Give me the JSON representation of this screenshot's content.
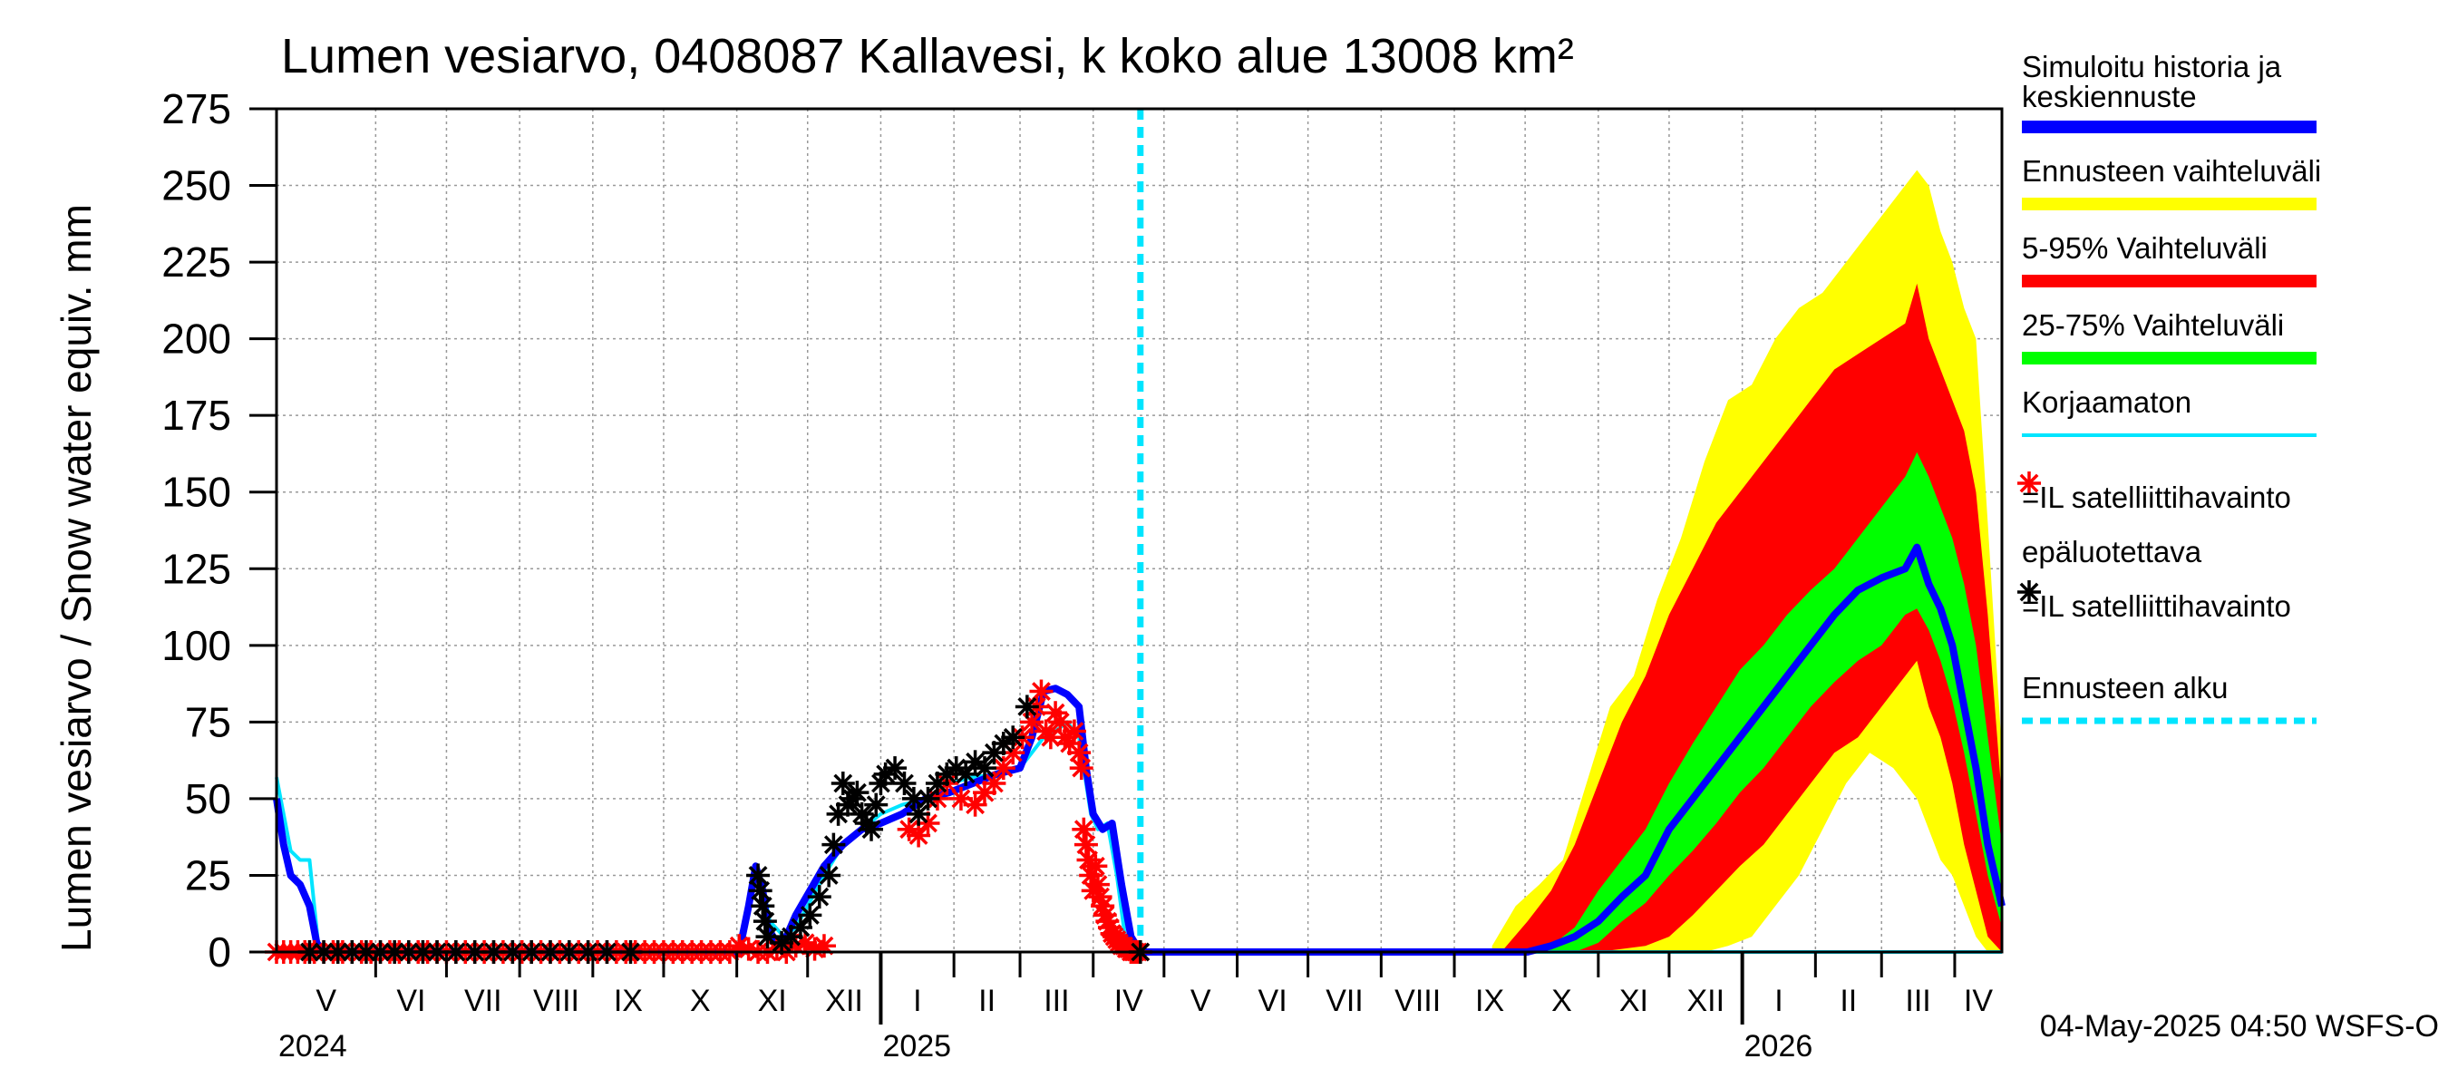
{
  "chart_data": {
    "type": "area",
    "title": "Lumen vesiarvo, 0408087 Kallavesi, k koko alue 13008 km²",
    "ylabel": "Lumen vesiarvo / Snow water equiv.    mm",
    "ylim": [
      0,
      275
    ],
    "yticks": [
      0,
      25,
      50,
      75,
      100,
      125,
      150,
      175,
      200,
      225,
      250,
      275
    ],
    "x_range_days": [
      0,
      731
    ],
    "x_origin_date": "2024-04-20",
    "months": [
      {
        "label": "V",
        "start": 0,
        "end": 42
      },
      {
        "label": "VI",
        "start": 42,
        "end": 72
      },
      {
        "label": "VII",
        "start": 72,
        "end": 103
      },
      {
        "label": "VIII",
        "start": 103,
        "end": 134
      },
      {
        "label": "IX",
        "start": 134,
        "end": 164
      },
      {
        "label": "X",
        "start": 164,
        "end": 195
      },
      {
        "label": "XI",
        "start": 195,
        "end": 225
      },
      {
        "label": "XII",
        "start": 225,
        "end": 256
      },
      {
        "label": "I",
        "start": 256,
        "end": 287
      },
      {
        "label": "II",
        "start": 287,
        "end": 315
      },
      {
        "label": "III",
        "start": 315,
        "end": 346
      },
      {
        "label": "IV",
        "start": 346,
        "end": 376
      },
      {
        "label": "V",
        "start": 376,
        "end": 407
      },
      {
        "label": "VI",
        "start": 407,
        "end": 437
      },
      {
        "label": "VII",
        "start": 437,
        "end": 468
      },
      {
        "label": "VIII",
        "start": 468,
        "end": 499
      },
      {
        "label": "IX",
        "start": 499,
        "end": 529
      },
      {
        "label": "X",
        "start": 529,
        "end": 560
      },
      {
        "label": "XI",
        "start": 560,
        "end": 590
      },
      {
        "label": "XII",
        "start": 590,
        "end": 621
      },
      {
        "label": "I",
        "start": 621,
        "end": 652
      },
      {
        "label": "II",
        "start": 652,
        "end": 680
      },
      {
        "label": "III",
        "start": 680,
        "end": 711
      },
      {
        "label": "IV",
        "start": 711,
        "end": 731
      }
    ],
    "years": [
      {
        "label": "2024",
        "day": 0
      },
      {
        "label": "2025",
        "day": 256
      },
      {
        "label": "2026",
        "day": 621
      }
    ],
    "year_boundaries": [
      256,
      621
    ],
    "forecast_start_day": 366,
    "series": [
      {
        "name": "Ennusteen vaihteluväli",
        "color": "#ffff00",
        "kind": "band",
        "x": [
          515,
          525,
          535,
          545,
          555,
          565,
          575,
          585,
          595,
          605,
          615,
          625,
          635,
          645,
          655,
          665,
          675,
          685,
          695,
          700,
          705,
          710,
          715,
          720,
          725,
          731
        ],
        "upper": [
          2,
          15,
          22,
          30,
          55,
          80,
          90,
          115,
          135,
          160,
          180,
          185,
          200,
          210,
          215,
          225,
          235,
          245,
          255,
          250,
          235,
          225,
          210,
          200,
          140,
          65
        ],
        "lower": [
          0,
          0,
          0,
          0,
          0,
          0,
          0,
          0,
          0,
          0,
          2,
          5,
          15,
          25,
          40,
          55,
          65,
          60,
          50,
          40,
          30,
          25,
          15,
          5,
          0,
          0
        ]
      },
      {
        "name": "5-95% Vaihteluväli",
        "color": "#ff0000",
        "kind": "band",
        "x": [
          520,
          530,
          540,
          550,
          560,
          570,
          580,
          590,
          600,
          610,
          620,
          630,
          640,
          650,
          660,
          670,
          680,
          690,
          695,
          700,
          705,
          710,
          715,
          720,
          725,
          731
        ],
        "upper": [
          1,
          10,
          20,
          35,
          55,
          75,
          90,
          110,
          125,
          140,
          150,
          160,
          170,
          180,
          190,
          195,
          200,
          205,
          218,
          200,
          190,
          180,
          170,
          150,
          110,
          50
        ],
        "lower": [
          0,
          0,
          0,
          0,
          0,
          1,
          2,
          5,
          12,
          20,
          28,
          35,
          45,
          55,
          65,
          70,
          80,
          90,
          95,
          80,
          70,
          55,
          35,
          20,
          5,
          0
        ]
      },
      {
        "name": "25-75% Vaihteluväli",
        "color": "#00ff00",
        "kind": "band",
        "x": [
          530,
          540,
          550,
          560,
          570,
          580,
          590,
          600,
          610,
          620,
          630,
          640,
          650,
          660,
          670,
          680,
          690,
          695,
          700,
          705,
          710,
          715,
          720,
          725,
          731
        ],
        "upper": [
          0,
          2,
          8,
          20,
          30,
          40,
          55,
          68,
          80,
          92,
          100,
          110,
          118,
          125,
          135,
          145,
          155,
          163,
          155,
          145,
          135,
          120,
          100,
          70,
          35
        ],
        "lower": [
          0,
          0,
          0,
          3,
          10,
          16,
          25,
          33,
          42,
          52,
          60,
          70,
          80,
          88,
          95,
          100,
          110,
          112,
          105,
          95,
          82,
          65,
          45,
          25,
          8
        ]
      },
      {
        "name": "Korjaamaton",
        "color": "#00e5ff",
        "kind": "line",
        "x": [
          0,
          3,
          6,
          10,
          14,
          18,
          25,
          135,
          140,
          142,
          196,
          200,
          203,
          206,
          209,
          215,
          220,
          225,
          232,
          240,
          248,
          256,
          265,
          275,
          285,
          295,
          305,
          315,
          320,
          325,
          330,
          335,
          340,
          345,
          348,
          352,
          356,
          360,
          366,
          731
        ],
        "y": [
          57,
          45,
          33,
          30,
          30,
          0,
          0,
          0,
          2,
          0,
          0,
          15,
          28,
          22,
          10,
          5,
          8,
          15,
          25,
          35,
          40,
          45,
          48,
          50,
          55,
          57,
          58,
          60,
          65,
          70,
          72,
          75,
          70,
          45,
          40,
          42,
          25,
          2,
          0,
          0
        ]
      },
      {
        "name": "Simuloitu historia ja keskiennuste",
        "color": "#0000ff",
        "kind": "line",
        "x": [
          0,
          3,
          6,
          10,
          14,
          17,
          20,
          25,
          196,
          200,
          203,
          206,
          208,
          212,
          216,
          220,
          226,
          232,
          240,
          248,
          256,
          265,
          275,
          285,
          295,
          305,
          315,
          320,
          325,
          330,
          335,
          340,
          343,
          346,
          350,
          354,
          358,
          362,
          366,
          520,
          530,
          540,
          550,
          560,
          570,
          580,
          590,
          600,
          610,
          620,
          630,
          640,
          650,
          660,
          670,
          680,
          690,
          695,
          700,
          705,
          710,
          715,
          720,
          725,
          731
        ],
        "y": [
          50,
          35,
          25,
          22,
          15,
          3,
          0,
          0,
          0,
          15,
          28,
          20,
          8,
          3,
          5,
          12,
          20,
          28,
          35,
          40,
          42,
          45,
          50,
          52,
          55,
          58,
          60,
          70,
          85,
          86,
          84,
          80,
          60,
          45,
          40,
          42,
          22,
          5,
          0,
          0,
          0,
          2,
          5,
          10,
          18,
          25,
          40,
          50,
          60,
          70,
          80,
          90,
          100,
          110,
          118,
          122,
          125,
          132,
          120,
          112,
          100,
          80,
          60,
          35,
          15
        ]
      }
    ],
    "observations": [
      {
        "name": "IL satelliittihavainto epäluotettava",
        "color": "#ff0000",
        "x": [
          0,
          3,
          6,
          9,
          12,
          16,
          20,
          24,
          28,
          32,
          36,
          40,
          44,
          48,
          52,
          56,
          60,
          64,
          68,
          72,
          76,
          80,
          84,
          88,
          92,
          96,
          100,
          104,
          108,
          112,
          116,
          120,
          124,
          128,
          132,
          136,
          140,
          144,
          148,
          152,
          156,
          160,
          164,
          168,
          172,
          176,
          180,
          184,
          188,
          192,
          196,
          200,
          204,
          208,
          212,
          216,
          220,
          224,
          228,
          232,
          268,
          272,
          276,
          280,
          284,
          290,
          296,
          300,
          304,
          308,
          312,
          316,
          320,
          322,
          324,
          326,
          328,
          330,
          332,
          334,
          336,
          338,
          340,
          341,
          342,
          343,
          344,
          345,
          346,
          347,
          348,
          349,
          350,
          351,
          352,
          353,
          354,
          355,
          356,
          357,
          358,
          359,
          360,
          361,
          362,
          363,
          364,
          365,
          366
        ],
        "y": [
          0,
          0,
          0,
          0,
          0,
          0,
          0,
          0,
          0,
          0,
          0,
          0,
          0,
          0,
          0,
          0,
          0,
          0,
          0,
          0,
          0,
          0,
          0,
          0,
          0,
          0,
          0,
          0,
          0,
          0,
          0,
          0,
          0,
          0,
          0,
          0,
          0,
          0,
          0,
          0,
          0,
          0,
          0,
          0,
          0,
          0,
          0,
          0,
          0,
          0,
          2,
          1,
          0,
          0,
          1,
          0,
          2,
          3,
          1,
          2,
          40,
          38,
          42,
          50,
          55,
          50,
          48,
          52,
          55,
          60,
          65,
          70,
          75,
          80,
          85,
          72,
          70,
          78,
          75,
          70,
          68,
          72,
          65,
          60,
          40,
          35,
          30,
          25,
          20,
          28,
          22,
          18,
          15,
          12,
          10,
          8,
          6,
          5,
          4,
          3,
          2,
          2,
          1,
          1,
          0,
          0,
          0,
          0,
          0
        ]
      },
      {
        "name": "IL satelliittihavainto",
        "color": "#000000",
        "x": [
          14,
          20,
          26,
          32,
          38,
          44,
          50,
          56,
          62,
          68,
          76,
          84,
          92,
          100,
          108,
          116,
          124,
          132,
          140,
          150,
          204,
          205,
          206,
          207,
          208,
          214,
          218,
          222,
          226,
          230,
          234,
          236,
          238,
          240,
          242,
          244,
          246,
          248,
          250,
          252,
          254,
          256,
          258,
          262,
          266,
          270,
          272,
          276,
          280,
          284,
          288,
          292,
          296,
          300,
          304,
          308,
          312,
          318,
          366
        ],
        "y": [
          0,
          0,
          0,
          0,
          0,
          0,
          0,
          0,
          0,
          0,
          0,
          0,
          0,
          0,
          0,
          0,
          0,
          0,
          0,
          0,
          25,
          20,
          15,
          10,
          5,
          3,
          5,
          8,
          12,
          18,
          25,
          35,
          45,
          55,
          48,
          50,
          52,
          45,
          42,
          40,
          48,
          55,
          58,
          60,
          55,
          50,
          45,
          50,
          55,
          58,
          60,
          58,
          62,
          60,
          65,
          68,
          70,
          80,
          0
        ]
      }
    ],
    "legend": [
      {
        "label": "Simuloitu historia ja",
        "label2": "keskiennuste",
        "color": "#0000ff",
        "kind": "line"
      },
      {
        "label": "Ennusteen vaihteluväli",
        "color": "#ffff00",
        "kind": "line"
      },
      {
        "label": "5-95% Vaihteluväli",
        "color": "#ff0000",
        "kind": "line"
      },
      {
        "label": "25-75% Vaihteluväli",
        "color": "#00ff00",
        "kind": "line"
      },
      {
        "label": "Korjaamaton",
        "color": "#00e5ff",
        "kind": "thin"
      },
      {
        "label": "=IL satelliittihavainto",
        "label2": "epäluotettava",
        "color": "#ff0000",
        "kind": "star"
      },
      {
        "label": "=IL satelliittihavainto",
        "color": "#000000",
        "kind": "star"
      },
      {
        "label": "Ennusteen alku",
        "color": "#00e5ff",
        "kind": "dash"
      }
    ],
    "footer": "04-May-2025 04:50 WSFS-O"
  }
}
